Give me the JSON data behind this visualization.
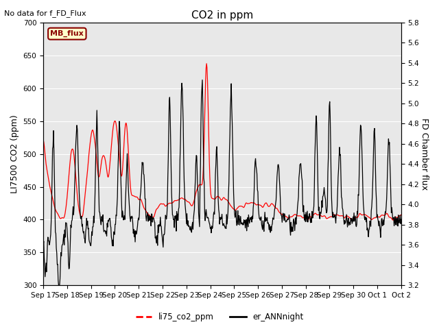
{
  "title": "CO2 in ppm",
  "ylabel_left": "LI7500 CO2 (ppm)",
  "ylabel_right": "FD Chamber flux",
  "ylim_left": [
    300,
    700
  ],
  "ylim_right": [
    3.2,
    5.8
  ],
  "yticks_left": [
    300,
    350,
    400,
    450,
    500,
    550,
    600,
    650,
    700
  ],
  "yticks_right": [
    3.2,
    3.4,
    3.6,
    3.8,
    4.0,
    4.2,
    4.4,
    4.6,
    4.8,
    5.0,
    5.2,
    5.4,
    5.6,
    5.8
  ],
  "xtick_labels": [
    "Sep 17",
    "Sep 18",
    "Sep 19",
    "Sep 20",
    "Sep 21",
    "Sep 22",
    "Sep 23",
    "Sep 24",
    "Sep 25",
    "Sep 26",
    "Sep 27",
    "Sep 28",
    "Sep 29",
    "Sep 30",
    "Oct 1",
    "Oct 2"
  ],
  "no_data_text": "No data for f_FD_Flux",
  "mb_flux_label": "MB_flux",
  "legend_labels": [
    "li75_co2_ppm",
    "er_ANNnight"
  ],
  "line_colors": [
    "red",
    "black"
  ],
  "bg_color": "#e8e8e8",
  "fig_bg_color": "#ffffff",
  "title_fontsize": 11,
  "label_fontsize": 9,
  "tick_fontsize": 7.5
}
